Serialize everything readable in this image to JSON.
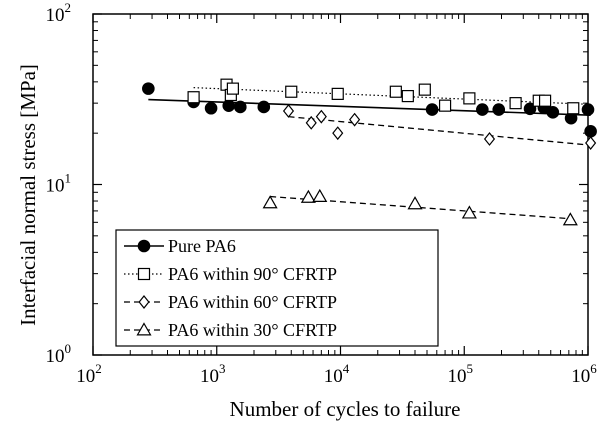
{
  "chart_data": {
    "type": "scatter",
    "xlabel": "Number of cycles to failure",
    "ylabel": "Interfacial normal stress [MPa]",
    "x_scale": "log",
    "y_scale": "log",
    "xlim": [
      100,
      1000000
    ],
    "ylim": [
      1,
      100
    ],
    "x_ticks": [
      {
        "value": 100,
        "base": "10",
        "exp": "2"
      },
      {
        "value": 1000,
        "base": "10",
        "exp": "3"
      },
      {
        "value": 10000,
        "base": "10",
        "exp": "4"
      },
      {
        "value": 100000,
        "base": "10",
        "exp": "5"
      },
      {
        "value": 1000000,
        "base": "10",
        "exp": "6"
      }
    ],
    "y_ticks": [
      {
        "value": 1,
        "base": "10",
        "exp": "0"
      },
      {
        "value": 10,
        "base": "10",
        "exp": "1"
      },
      {
        "value": 100,
        "base": "10",
        "exp": "2"
      }
    ],
    "grid": false,
    "legend_position": "bottom-left",
    "series": [
      {
        "name": "Pure PA6",
        "marker": "filled-circle",
        "line_style": "solid",
        "points": [
          [
            280,
            36.5
          ],
          [
            650,
            30.5
          ],
          [
            900,
            28
          ],
          [
            1250,
            29
          ],
          [
            1550,
            28.5
          ],
          [
            2400,
            28.5
          ],
          [
            55000,
            27.5
          ],
          [
            140000,
            27.5
          ],
          [
            190000,
            27.5
          ],
          [
            340000,
            27.8
          ],
          [
            440000,
            28.2
          ],
          [
            520000,
            26.5
          ],
          [
            730000,
            24.5
          ],
          [
            1000000,
            27.5
          ],
          [
            1050000,
            20.5
          ]
        ],
        "fit": [
          [
            280,
            31.5
          ],
          [
            1050000,
            25.5
          ]
        ]
      },
      {
        "name": "PA6 within 90° CFRTP",
        "marker": "open-square",
        "line_style": "dotted",
        "points": [
          [
            650,
            32.5
          ],
          [
            1200,
            38.5
          ],
          [
            1300,
            33.5
          ],
          [
            1350,
            36.5
          ],
          [
            4000,
            35
          ],
          [
            9500,
            34
          ],
          [
            28000,
            35
          ],
          [
            35000,
            33
          ],
          [
            48000,
            36
          ],
          [
            70000,
            29
          ],
          [
            110000,
            32
          ],
          [
            260000,
            30
          ],
          [
            400000,
            31
          ],
          [
            450000,
            31
          ],
          [
            760000,
            28
          ]
        ],
        "fit": [
          [
            650,
            37
          ],
          [
            1050000,
            29.5
          ]
        ]
      },
      {
        "name": "PA6 within 60° CFRTP",
        "marker": "open-diamond",
        "line_style": "dashed",
        "points": [
          [
            3800,
            27
          ],
          [
            5800,
            23
          ],
          [
            7000,
            25
          ],
          [
            9500,
            20
          ],
          [
            13000,
            24
          ],
          [
            160000,
            18.5
          ],
          [
            1050000,
            17.5
          ]
        ],
        "fit": [
          [
            3800,
            25
          ],
          [
            1050000,
            17
          ]
        ]
      },
      {
        "name": "PA6 within 30° CFRTP",
        "marker": "open-triangle",
        "line_style": "dashed",
        "points": [
          [
            2700,
            7.8
          ],
          [
            5500,
            8.4
          ],
          [
            6800,
            8.5
          ],
          [
            40000,
            7.7
          ],
          [
            110000,
            6.8
          ],
          [
            720000,
            6.2
          ]
        ],
        "fit": [
          [
            2700,
            8.5
          ],
          [
            720000,
            6.3
          ]
        ]
      }
    ]
  }
}
